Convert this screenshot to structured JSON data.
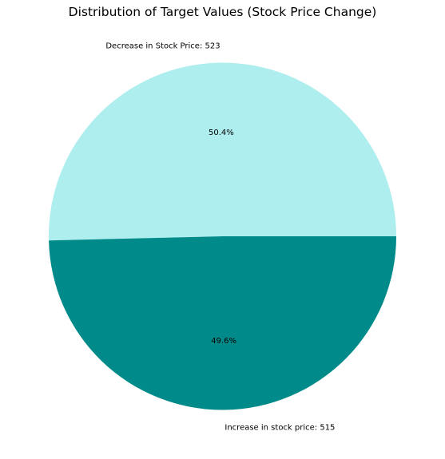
{
  "chart_data": {
    "type": "pie",
    "title": "Distribution of Target Values (Stock Price Change)",
    "categories": [
      "Decrease in Stock Price",
      "Increase in stock price"
    ],
    "values": [
      523,
      515
    ],
    "labels": [
      "Decrease in Stock Price: 523",
      "Increase in stock price: 515"
    ],
    "percent_labels": [
      "50.4%",
      "49.6%"
    ],
    "colors": [
      "#afeeee",
      "#008b8a"
    ],
    "start_angle_deg": 0,
    "direction": "counterclockwise"
  }
}
